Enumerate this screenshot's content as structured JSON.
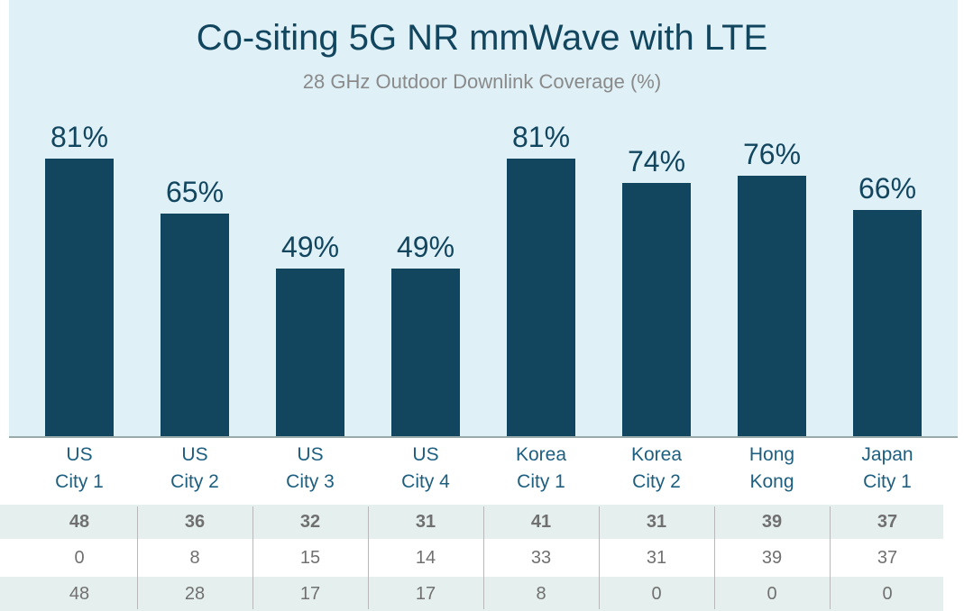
{
  "chart_data": {
    "type": "bar",
    "title": "Co-siting 5G NR mmWave with LTE",
    "subtitle": "28 GHz Outdoor Downlink Coverage (%)",
    "categories": [
      "US\nCity 1",
      "US\nCity 2",
      "US\nCity 3",
      "US\nCity 4",
      "Korea\nCity 1",
      "Korea\nCity 2",
      "Hong\nKong",
      "Japan\nCity 1"
    ],
    "values": [
      81,
      65,
      49,
      49,
      81,
      74,
      76,
      66
    ],
    "value_labels": [
      "81%",
      "65%",
      "49%",
      "49%",
      "81%",
      "74%",
      "76%",
      "66%"
    ],
    "color": "#12465f"
  },
  "table": {
    "rows": [
      [
        48,
        36,
        32,
        31,
        41,
        31,
        39,
        37
      ],
      [
        0,
        8,
        15,
        14,
        33,
        31,
        39,
        37
      ],
      [
        48,
        28,
        17,
        17,
        8,
        0,
        0,
        0
      ]
    ]
  }
}
